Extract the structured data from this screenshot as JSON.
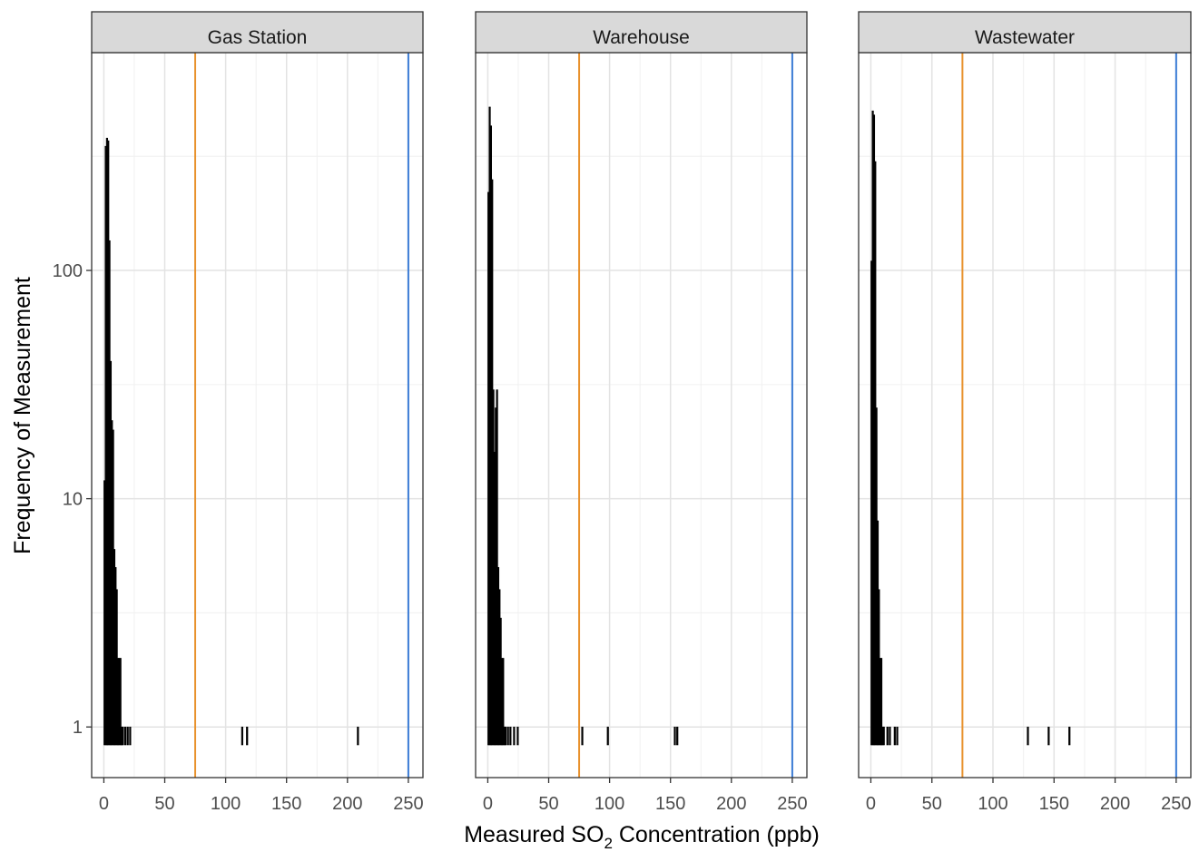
{
  "chart_data": {
    "type": "histogram",
    "facets": [
      {
        "name": "Gas Station",
        "bins": [
          {
            "x": 0,
            "count": 12
          },
          {
            "x": 1,
            "count": 350
          },
          {
            "x": 2,
            "count": 380
          },
          {
            "x": 3,
            "count": 370
          },
          {
            "x": 4,
            "count": 135
          },
          {
            "x": 5,
            "count": 40
          },
          {
            "x": 6,
            "count": 22
          },
          {
            "x": 7,
            "count": 20
          },
          {
            "x": 8,
            "count": 6
          },
          {
            "x": 9,
            "count": 5
          },
          {
            "x": 10,
            "count": 4
          },
          {
            "x": 11,
            "count": 2
          },
          {
            "x": 12,
            "count": 2
          },
          {
            "x": 13,
            "count": 2
          },
          {
            "x": 14,
            "count": 1
          },
          {
            "x": 15,
            "count": 1
          },
          {
            "x": 17,
            "count": 1
          },
          {
            "x": 19,
            "count": 1
          },
          {
            "x": 21,
            "count": 1
          },
          {
            "x": 113,
            "count": 1
          },
          {
            "x": 117,
            "count": 1
          },
          {
            "x": 208,
            "count": 1
          }
        ]
      },
      {
        "name": "Warehouse",
        "bins": [
          {
            "x": 0,
            "count": 220
          },
          {
            "x": 1,
            "count": 520
          },
          {
            "x": 2,
            "count": 430
          },
          {
            "x": 3,
            "count": 250
          },
          {
            "x": 4,
            "count": 30
          },
          {
            "x": 5,
            "count": 16
          },
          {
            "x": 6,
            "count": 25
          },
          {
            "x": 7,
            "count": 30
          },
          {
            "x": 8,
            "count": 5
          },
          {
            "x": 9,
            "count": 4
          },
          {
            "x": 10,
            "count": 3
          },
          {
            "x": 11,
            "count": 2
          },
          {
            "x": 12,
            "count": 2
          },
          {
            "x": 13,
            "count": 1
          },
          {
            "x": 14,
            "count": 1
          },
          {
            "x": 16,
            "count": 1
          },
          {
            "x": 18,
            "count": 1
          },
          {
            "x": 21,
            "count": 1
          },
          {
            "x": 24,
            "count": 1
          },
          {
            "x": 77,
            "count": 1
          },
          {
            "x": 98,
            "count": 1
          },
          {
            "x": 153,
            "count": 1
          },
          {
            "x": 155,
            "count": 1
          }
        ]
      },
      {
        "name": "Wastewater",
        "bins": [
          {
            "x": 0,
            "count": 110
          },
          {
            "x": 1,
            "count": 500
          },
          {
            "x": 2,
            "count": 480
          },
          {
            "x": 3,
            "count": 300
          },
          {
            "x": 4,
            "count": 25
          },
          {
            "x": 5,
            "count": 8
          },
          {
            "x": 6,
            "count": 4
          },
          {
            "x": 7,
            "count": 2
          },
          {
            "x": 8,
            "count": 2
          },
          {
            "x": 9,
            "count": 1
          },
          {
            "x": 10,
            "count": 1
          },
          {
            "x": 13,
            "count": 1
          },
          {
            "x": 15,
            "count": 1
          },
          {
            "x": 19,
            "count": 1
          },
          {
            "x": 21,
            "count": 1
          },
          {
            "x": 128,
            "count": 1
          },
          {
            "x": 145,
            "count": 1
          },
          {
            "x": 162,
            "count": 1
          }
        ]
      }
    ],
    "reference_lines": [
      {
        "x": 75,
        "color": "#E8912C"
      },
      {
        "x": 250,
        "color": "#3A7BD5"
      }
    ],
    "xlabel_main": "Measured SO",
    "xlabel_sub": "2",
    "xlabel_rest": " Concentration (ppb)",
    "ylabel": "Frequency of Measurement",
    "xlim": [
      -10,
      262
    ],
    "ylim": [
      0.6,
      900
    ],
    "yscale": "log",
    "xticks": [
      0,
      50,
      100,
      150,
      200,
      250
    ],
    "xtick_labels": [
      "0",
      "50",
      "100",
      "150",
      "200",
      "250"
    ],
    "yticks": [
      1,
      10,
      100
    ],
    "ytick_labels": [
      "1",
      "10",
      "100"
    ],
    "grid": true,
    "bar_color": "#000000",
    "strip_fill": "#D9D9D9"
  }
}
